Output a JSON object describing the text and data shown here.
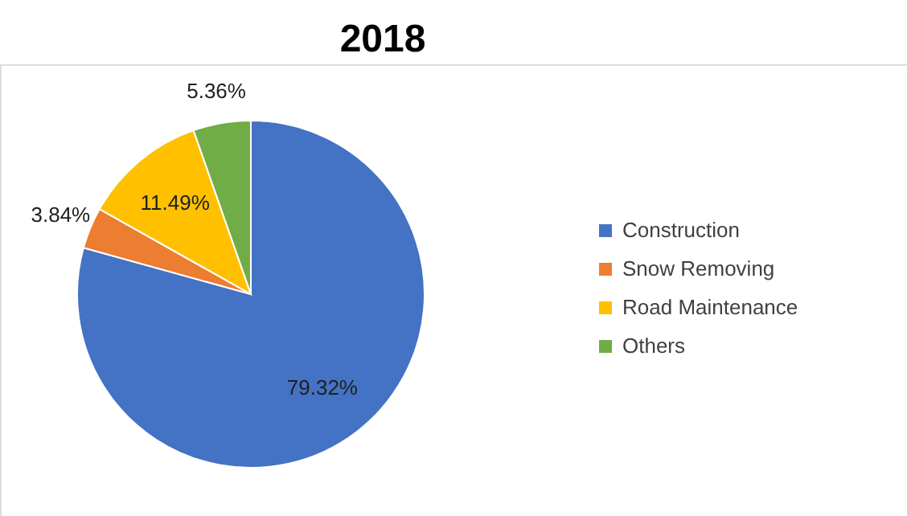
{
  "chart_data": {
    "type": "pie",
    "title": "2018",
    "categories": [
      "Construction",
      "Snow Removing",
      "Road Maintenance",
      "Others"
    ],
    "values": [
      79.32,
      3.84,
      11.49,
      5.36
    ],
    "colors": [
      "#4472c4",
      "#ed7d31",
      "#ffc000",
      "#70ad47"
    ],
    "value_labels": [
      "79.32%",
      "3.84%",
      "11.49%",
      "5.36%"
    ],
    "legend": "right"
  }
}
